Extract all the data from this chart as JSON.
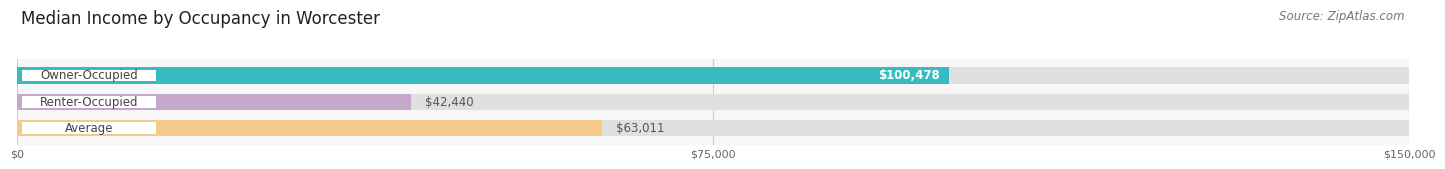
{
  "title": "Median Income by Occupancy in Worcester",
  "source": "Source: ZipAtlas.com",
  "categories": [
    "Owner-Occupied",
    "Renter-Occupied",
    "Average"
  ],
  "values": [
    100478,
    42440,
    63011
  ],
  "bar_colors": [
    "#36bcbe",
    "#c3a8cc",
    "#f5c98a"
  ],
  "bar_bg_color": "#e0e0e0",
  "value_labels": [
    "$100,478",
    "$42,440",
    "$63,011"
  ],
  "value_inside": [
    true,
    false,
    false
  ],
  "xlim": [
    0,
    150000
  ],
  "xticks": [
    0,
    75000,
    150000
  ],
  "xtick_labels": [
    "$0",
    "$75,000",
    "$150,000"
  ],
  "title_fontsize": 12,
  "source_fontsize": 8.5,
  "label_fontsize": 8.5,
  "value_fontsize": 8.5,
  "bar_height": 0.62,
  "background_color": "#ffffff",
  "plot_bg_color": "#f7f7f7"
}
